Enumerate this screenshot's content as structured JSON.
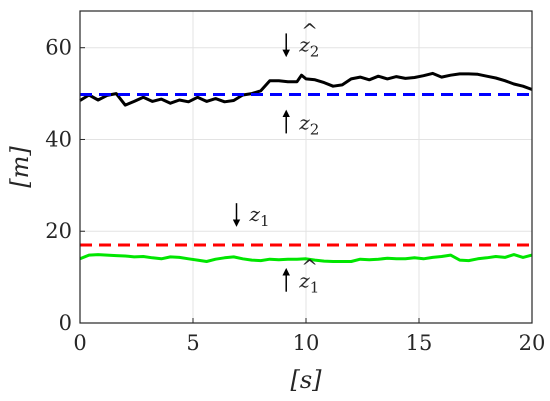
{
  "chart_data": {
    "type": "line",
    "xlabel": "[s]",
    "ylabel": "[m]",
    "xlim": [
      0,
      20
    ],
    "ylim": [
      0,
      68
    ],
    "xticks": [
      "0",
      "5",
      "10",
      "15",
      "20"
    ],
    "xtick_values": [
      0,
      5,
      10,
      15,
      20
    ],
    "yticks": [
      "0",
      "20",
      "40",
      "60"
    ],
    "ytick_values": [
      0,
      20,
      40,
      60
    ],
    "grid": true,
    "series": [
      {
        "name": "ẑ2",
        "color": "#000000",
        "style": "solid",
        "x": [
          0,
          0.4,
          0.8,
          1.2,
          1.6,
          2.0,
          2.4,
          2.8,
          3.2,
          3.6,
          4.0,
          4.4,
          4.8,
          5.2,
          5.6,
          6.0,
          6.4,
          6.8,
          7.2,
          7.6,
          8.0,
          8.4,
          8.8,
          9.2,
          9.6,
          9.8,
          10.0,
          10.4,
          10.8,
          11.2,
          11.6,
          12.0,
          12.4,
          12.8,
          13.2,
          13.6,
          14.0,
          14.4,
          14.8,
          15.2,
          15.6,
          16.0,
          16.4,
          16.8,
          17.2,
          17.6,
          18.0,
          18.4,
          18.8,
          19.2,
          19.6,
          20.0
        ],
        "values": [
          48.5,
          49.7,
          48.6,
          49.6,
          50.0,
          47.5,
          48.3,
          49.2,
          48.3,
          48.8,
          47.9,
          48.6,
          48.2,
          49.2,
          48.3,
          48.9,
          48.2,
          48.5,
          49.7,
          50.0,
          50.6,
          52.8,
          52.8,
          52.6,
          52.6,
          54.0,
          53.2,
          53.0,
          52.4,
          51.6,
          51.9,
          53.2,
          53.6,
          53.0,
          53.8,
          53.2,
          53.7,
          53.3,
          53.5,
          53.9,
          54.4,
          53.6,
          54.0,
          54.3,
          54.3,
          54.2,
          53.8,
          53.4,
          52.8,
          52.1,
          51.6,
          50.9
        ]
      },
      {
        "name": "z2",
        "color": "#0000ff",
        "style": "dashed",
        "x": [
          0,
          20
        ],
        "values": [
          49.8,
          49.8
        ]
      },
      {
        "name": "z1",
        "color": "#ff0000",
        "style": "dashed",
        "x": [
          0,
          20
        ],
        "values": [
          17.0,
          17.0
        ]
      },
      {
        "name": "ẑ1",
        "color": "#00e600",
        "style": "solid",
        "x": [
          0,
          0.4,
          0.8,
          1.2,
          1.6,
          2.0,
          2.4,
          2.8,
          3.2,
          3.6,
          4.0,
          4.4,
          4.8,
          5.2,
          5.6,
          6.0,
          6.4,
          6.8,
          7.2,
          7.6,
          8.0,
          8.4,
          8.8,
          9.2,
          9.6,
          10.0,
          10.4,
          10.8,
          11.2,
          11.6,
          12.0,
          12.4,
          12.8,
          13.2,
          13.6,
          14.0,
          14.4,
          14.8,
          15.2,
          15.6,
          16.0,
          16.4,
          16.8,
          17.2,
          17.6,
          18.0,
          18.4,
          18.8,
          19.2,
          19.6,
          20.0
        ],
        "values": [
          14.0,
          14.8,
          14.9,
          14.8,
          14.7,
          14.6,
          14.4,
          14.5,
          14.2,
          14.0,
          14.4,
          14.3,
          14.0,
          13.7,
          13.4,
          13.9,
          14.2,
          14.4,
          14.0,
          13.7,
          13.6,
          13.9,
          13.8,
          13.9,
          13.9,
          14.0,
          13.7,
          13.5,
          13.4,
          13.4,
          13.4,
          13.9,
          13.8,
          13.9,
          14.1,
          14.0,
          14.0,
          14.2,
          14.0,
          14.3,
          14.5,
          14.8,
          13.7,
          13.6,
          14.0,
          14.2,
          14.5,
          14.3,
          14.9,
          14.3,
          14.8
        ]
      }
    ],
    "annotations": [
      {
        "label": "z",
        "hat": true,
        "sub": "2",
        "arrow": "down",
        "x": 9.7,
        "y": 60.5
      },
      {
        "label": "z",
        "hat": false,
        "sub": "2",
        "arrow": "up",
        "x": 9.7,
        "y": 43.5
      },
      {
        "label": "z",
        "hat": false,
        "sub": "1",
        "arrow": "down",
        "x": 7.5,
        "y": 23.5
      },
      {
        "label": "z",
        "hat": true,
        "sub": "1",
        "arrow": "up",
        "x": 9.7,
        "y": 9.0
      }
    ]
  }
}
